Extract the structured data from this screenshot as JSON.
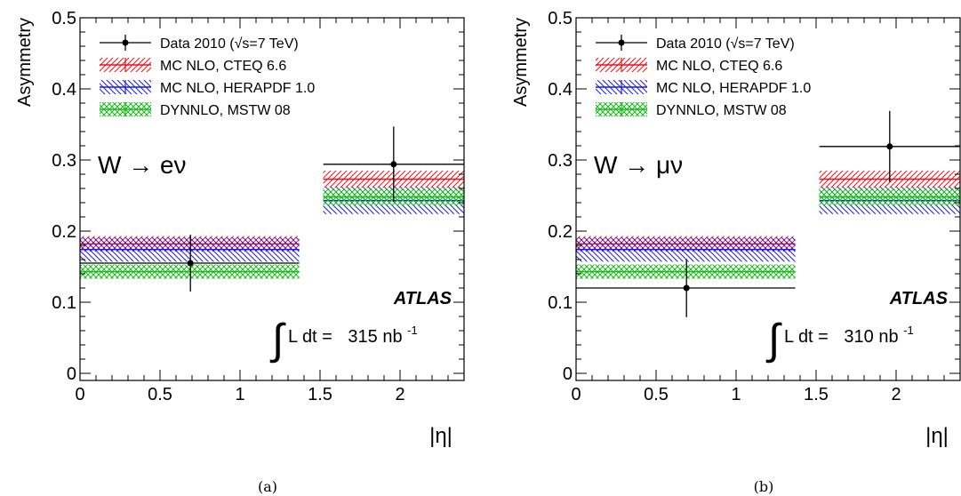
{
  "chart_data": [
    {
      "type": "bar",
      "caption": "(a)",
      "ylabel": "Asymmetry",
      "xlabel": "|η|",
      "xlim": [
        0,
        2.4
      ],
      "ylim": [
        -0.01,
        0.5
      ],
      "xticks": [
        0,
        0.5,
        1,
        1.5,
        2
      ],
      "xtick_labels": [
        "0",
        "0.5",
        "1",
        "1.5",
        "2"
      ],
      "yticks": [
        0,
        0.1,
        0.2,
        0.3,
        0.4,
        0.5
      ],
      "ytick_labels": [
        "0",
        "0.1",
        "0.2",
        "0.3",
        "0.4",
        "0.5"
      ],
      "channel_label": "W → eν",
      "experiment_label": "ATLAS",
      "lumi_label": "L dt =",
      "lumi_value": "315 nb",
      "lumi_exponent": "-1",
      "legend_position": "top-left",
      "bins": [
        {
          "x_low": 0,
          "x_high": 1.37,
          "x_center": 0.69
        },
        {
          "x_low": 1.52,
          "x_high": 2.4,
          "x_center": 1.96
        }
      ],
      "series": [
        {
          "name": "Data 2010 (√s=7 TeV)",
          "kind": "data",
          "color": "#000000",
          "values": [
            0.155,
            0.294
          ],
          "errors": [
            0.04,
            0.053
          ]
        },
        {
          "name": "MC NLO, CTEQ 6.6",
          "kind": "band",
          "color": "#e8141b",
          "values": [
            0.182,
            0.273
          ],
          "errors": [
            0.011,
            0.012
          ]
        },
        {
          "name": "MC NLO, HERAPDF 1.0",
          "kind": "band",
          "color": "#1a1ae6",
          "values": [
            0.174,
            0.243
          ],
          "errors": [
            0.017,
            0.019
          ]
        },
        {
          "name": "DYNNLO, MSTW 08",
          "kind": "band",
          "color": "#1ab81a",
          "values": [
            0.143,
            0.248
          ],
          "errors": [
            0.01,
            0.012
          ]
        }
      ]
    },
    {
      "type": "bar",
      "caption": "(b)",
      "ylabel": "Asymmetry",
      "xlabel": "|η|",
      "xlim": [
        0,
        2.4
      ],
      "ylim": [
        -0.01,
        0.5
      ],
      "xticks": [
        0,
        0.5,
        1,
        1.5,
        2
      ],
      "xtick_labels": [
        "0",
        "0.5",
        "1",
        "1.5",
        "2"
      ],
      "yticks": [
        0,
        0.1,
        0.2,
        0.3,
        0.4,
        0.5
      ],
      "ytick_labels": [
        "0",
        "0.1",
        "0.2",
        "0.3",
        "0.4",
        "0.5"
      ],
      "channel_label": "W → μν",
      "experiment_label": "ATLAS",
      "lumi_label": "L dt =",
      "lumi_value": "310 nb",
      "lumi_exponent": "-1",
      "legend_position": "top-left",
      "bins": [
        {
          "x_low": 0,
          "x_high": 1.37,
          "x_center": 0.69
        },
        {
          "x_low": 1.52,
          "x_high": 2.4,
          "x_center": 1.96
        }
      ],
      "series": [
        {
          "name": "Data 2010 (√s=7 TeV)",
          "kind": "data",
          "color": "#000000",
          "values": [
            0.12,
            0.319
          ],
          "errors": [
            0.041,
            0.05
          ]
        },
        {
          "name": "MC NLO, CTEQ 6.6",
          "kind": "band",
          "color": "#e8141b",
          "values": [
            0.182,
            0.273
          ],
          "errors": [
            0.011,
            0.012
          ]
        },
        {
          "name": "MC NLO, HERAPDF 1.0",
          "kind": "band",
          "color": "#1a1ae6",
          "values": [
            0.174,
            0.243
          ],
          "errors": [
            0.017,
            0.019
          ]
        },
        {
          "name": "DYNNLO, MSTW 08",
          "kind": "band",
          "color": "#1ab81a",
          "values": [
            0.143,
            0.248
          ],
          "errors": [
            0.01,
            0.012
          ]
        }
      ]
    }
  ]
}
